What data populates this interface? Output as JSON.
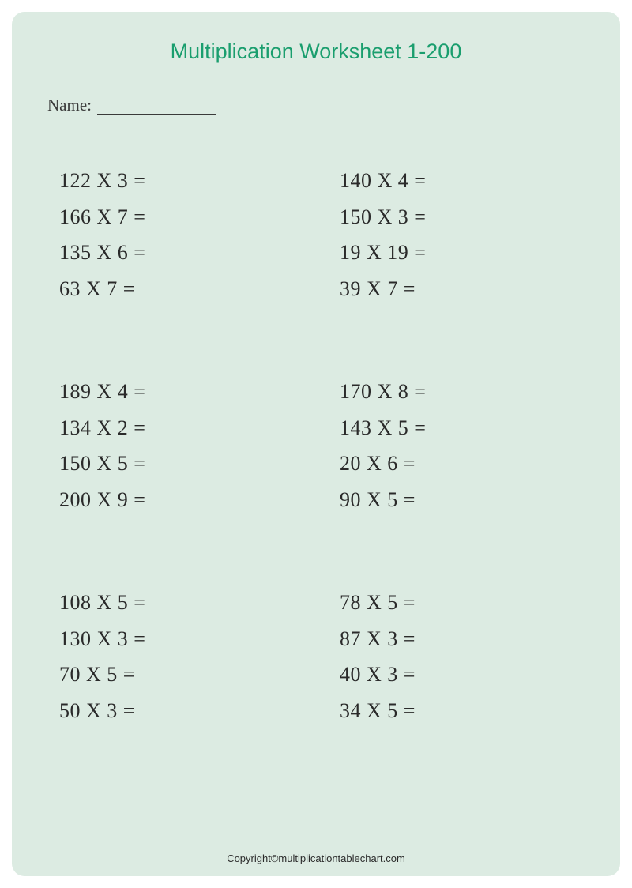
{
  "title": "Multiplication Worksheet 1-200",
  "name_label": "Name:",
  "copyright": "Copyright©multiplicationtablechart.com",
  "colors": {
    "page_bg": "#dcebe2",
    "title_color": "#1a9e6e",
    "text_color": "#2a2a2a",
    "body_bg": "#ffffff"
  },
  "typography": {
    "title_fontsize": 27,
    "problem_fontsize": 26,
    "name_fontsize": 21,
    "copyright_fontsize": 13
  },
  "groups": [
    {
      "left": [
        "122 X 3 =",
        "166 X 7 =",
        "135 X 6 =",
        "63 X 7 ="
      ],
      "right": [
        "140 X 4 =",
        "150 X 3 =",
        "19 X 19 =",
        "39 X 7 ="
      ]
    },
    {
      "left": [
        "189 X 4 =",
        "134 X 2 =",
        "150 X 5 =",
        "200 X 9 ="
      ],
      "right": [
        "170 X 8 =",
        "143 X 5 =",
        "20 X 6 =",
        "90 X 5 ="
      ]
    },
    {
      "left": [
        "108 X 5 =",
        "130 X 3 =",
        "70 X 5 =",
        "50 X 3 ="
      ],
      "right": [
        "78 X 5 =",
        "87 X 3 =",
        "40 X 3 =",
        "34 X 5 ="
      ]
    }
  ]
}
